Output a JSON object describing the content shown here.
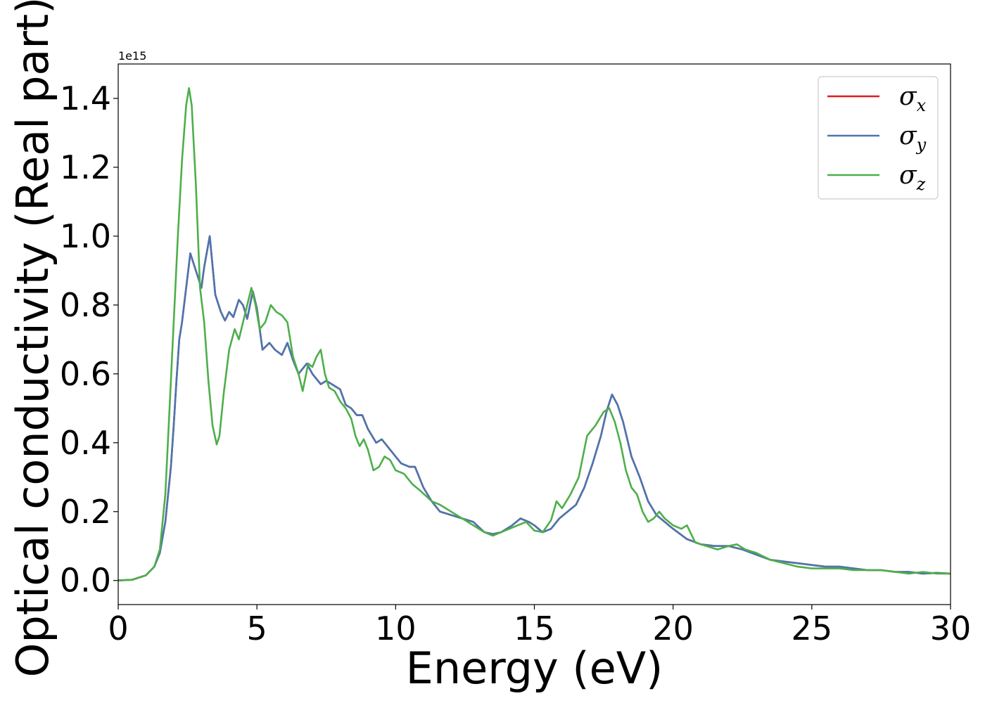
{
  "chart_data": {
    "type": "line",
    "xlabel": "Energy (eV)",
    "ylabel": "Optical conductivity (Real part)",
    "y_offset_label": "1e15",
    "y_scale": 1000000000000000.0,
    "xlim": [
      0,
      30
    ],
    "ylim": [
      -0.07,
      1.5
    ],
    "x_ticks": [
      0,
      5,
      10,
      15,
      20,
      25,
      30
    ],
    "x_tick_labels": [
      "0",
      "5",
      "10",
      "15",
      "20",
      "25",
      "30"
    ],
    "y_ticks": [
      0.0,
      0.2,
      0.4,
      0.6,
      0.8,
      1.0,
      1.2,
      1.4
    ],
    "y_tick_labels": [
      "0.0",
      "0.2",
      "0.4",
      "0.6",
      "0.8",
      "1.0",
      "1.2",
      "1.4"
    ],
    "grid": false,
    "legend": {
      "placement": "top-right",
      "entries": [
        "σx",
        "σy",
        "σz"
      ]
    },
    "series": [
      {
        "name": "σx",
        "symbol": "σ",
        "subscript": "x",
        "color": "#e41a1c",
        "x": [
          0,
          0.5,
          1.0,
          1.3,
          1.5,
          1.7,
          1.9,
          2.0,
          2.1,
          2.2,
          2.3,
          2.45,
          2.6,
          2.8,
          3.0,
          3.1,
          3.3,
          3.5,
          3.7,
          3.85,
          4.0,
          4.15,
          4.35,
          4.5,
          4.65,
          4.85,
          5.0,
          5.2,
          5.45,
          5.65,
          5.9,
          6.1,
          6.3,
          6.5,
          6.8,
          7.0,
          7.3,
          7.5,
          7.8,
          8.0,
          8.2,
          8.4,
          8.6,
          8.8,
          9.0,
          9.3,
          9.5,
          9.7,
          10.0,
          10.2,
          10.5,
          10.7,
          11.0,
          11.3,
          11.6,
          12.0,
          12.4,
          12.8,
          13.2,
          13.5,
          13.8,
          14.0,
          14.2,
          14.5,
          14.8,
          15.0,
          15.3,
          15.6,
          15.9,
          16.2,
          16.5,
          16.8,
          17.1,
          17.4,
          17.6,
          17.8,
          18.0,
          18.2,
          18.5,
          18.8,
          19.1,
          19.4,
          19.7,
          20.0,
          20.5,
          21.0,
          21.5,
          22.0,
          22.5,
          23.0,
          23.5,
          24.0,
          24.5,
          25.0,
          25.5,
          26.0,
          26.5,
          27.0,
          27.5,
          28.0,
          28.5,
          29.0,
          29.5,
          30.0
        ],
        "y": [
          0.0,
          0.002,
          0.015,
          0.04,
          0.08,
          0.17,
          0.33,
          0.45,
          0.58,
          0.7,
          0.75,
          0.85,
          0.95,
          0.9,
          0.85,
          0.91,
          1.0,
          0.83,
          0.78,
          0.755,
          0.78,
          0.765,
          0.815,
          0.8,
          0.76,
          0.84,
          0.79,
          0.67,
          0.69,
          0.67,
          0.655,
          0.69,
          0.64,
          0.6,
          0.63,
          0.6,
          0.57,
          0.58,
          0.565,
          0.555,
          0.51,
          0.5,
          0.48,
          0.48,
          0.44,
          0.4,
          0.41,
          0.39,
          0.36,
          0.34,
          0.33,
          0.33,
          0.27,
          0.23,
          0.2,
          0.19,
          0.18,
          0.17,
          0.14,
          0.135,
          0.14,
          0.15,
          0.16,
          0.18,
          0.17,
          0.16,
          0.14,
          0.15,
          0.18,
          0.2,
          0.22,
          0.27,
          0.34,
          0.42,
          0.49,
          0.54,
          0.51,
          0.46,
          0.36,
          0.3,
          0.23,
          0.19,
          0.17,
          0.15,
          0.12,
          0.105,
          0.1,
          0.1,
          0.09,
          0.075,
          0.06,
          0.055,
          0.05,
          0.045,
          0.04,
          0.04,
          0.035,
          0.03,
          0.03,
          0.025,
          0.025,
          0.02,
          0.022,
          0.02
        ]
      },
      {
        "name": "σy",
        "symbol": "σ",
        "subscript": "y",
        "color": "#4a76b0",
        "x": [
          0,
          0.5,
          1.0,
          1.3,
          1.5,
          1.7,
          1.9,
          2.0,
          2.1,
          2.2,
          2.3,
          2.45,
          2.6,
          2.8,
          3.0,
          3.1,
          3.3,
          3.5,
          3.7,
          3.85,
          4.0,
          4.15,
          4.35,
          4.5,
          4.65,
          4.85,
          5.0,
          5.2,
          5.45,
          5.65,
          5.9,
          6.1,
          6.3,
          6.5,
          6.8,
          7.0,
          7.3,
          7.5,
          7.8,
          8.0,
          8.2,
          8.4,
          8.6,
          8.8,
          9.0,
          9.3,
          9.5,
          9.7,
          10.0,
          10.2,
          10.5,
          10.7,
          11.0,
          11.3,
          11.6,
          12.0,
          12.4,
          12.8,
          13.2,
          13.5,
          13.8,
          14.0,
          14.2,
          14.5,
          14.8,
          15.0,
          15.3,
          15.6,
          15.9,
          16.2,
          16.5,
          16.8,
          17.1,
          17.4,
          17.6,
          17.8,
          18.0,
          18.2,
          18.5,
          18.8,
          19.1,
          19.4,
          19.7,
          20.0,
          20.5,
          21.0,
          21.5,
          22.0,
          22.5,
          23.0,
          23.5,
          24.0,
          24.5,
          25.0,
          25.5,
          26.0,
          26.5,
          27.0,
          27.5,
          28.0,
          28.5,
          29.0,
          29.5,
          30.0
        ],
        "y": [
          0.0,
          0.002,
          0.015,
          0.04,
          0.08,
          0.17,
          0.33,
          0.45,
          0.58,
          0.7,
          0.75,
          0.85,
          0.95,
          0.9,
          0.85,
          0.91,
          1.0,
          0.83,
          0.78,
          0.755,
          0.78,
          0.765,
          0.815,
          0.8,
          0.76,
          0.84,
          0.79,
          0.67,
          0.69,
          0.67,
          0.655,
          0.69,
          0.64,
          0.6,
          0.63,
          0.6,
          0.57,
          0.58,
          0.565,
          0.555,
          0.51,
          0.5,
          0.48,
          0.48,
          0.44,
          0.4,
          0.41,
          0.39,
          0.36,
          0.34,
          0.33,
          0.33,
          0.27,
          0.23,
          0.2,
          0.19,
          0.18,
          0.17,
          0.14,
          0.135,
          0.14,
          0.15,
          0.16,
          0.18,
          0.17,
          0.16,
          0.14,
          0.15,
          0.18,
          0.2,
          0.22,
          0.27,
          0.34,
          0.42,
          0.49,
          0.54,
          0.51,
          0.46,
          0.36,
          0.3,
          0.23,
          0.19,
          0.17,
          0.15,
          0.12,
          0.105,
          0.1,
          0.1,
          0.09,
          0.075,
          0.06,
          0.055,
          0.05,
          0.045,
          0.04,
          0.04,
          0.035,
          0.03,
          0.03,
          0.025,
          0.025,
          0.02,
          0.022,
          0.02
        ]
      },
      {
        "name": "σz",
        "symbol": "σ",
        "subscript": "z",
        "color": "#4daf4a",
        "x": [
          0,
          0.5,
          1.0,
          1.3,
          1.5,
          1.7,
          1.85,
          2.0,
          2.15,
          2.3,
          2.45,
          2.55,
          2.65,
          2.8,
          2.95,
          3.1,
          3.25,
          3.4,
          3.55,
          3.65,
          3.8,
          4.0,
          4.2,
          4.35,
          4.5,
          4.65,
          4.8,
          4.95,
          5.1,
          5.3,
          5.5,
          5.7,
          5.9,
          6.1,
          6.3,
          6.5,
          6.65,
          6.85,
          7.0,
          7.15,
          7.3,
          7.45,
          7.6,
          7.8,
          8.0,
          8.2,
          8.4,
          8.55,
          8.7,
          8.85,
          9.0,
          9.2,
          9.4,
          9.6,
          9.8,
          10.0,
          10.3,
          10.6,
          10.9,
          11.3,
          11.6,
          12.0,
          12.4,
          12.8,
          13.2,
          13.5,
          13.8,
          14.1,
          14.4,
          14.7,
          15.0,
          15.3,
          15.6,
          15.8,
          16.0,
          16.3,
          16.6,
          16.9,
          17.2,
          17.5,
          17.7,
          17.9,
          18.1,
          18.3,
          18.5,
          18.7,
          18.9,
          19.1,
          19.3,
          19.5,
          19.7,
          20.0,
          20.3,
          20.5,
          20.8,
          21.2,
          21.6,
          22.0,
          22.3,
          22.6,
          23.0,
          23.5,
          24.0,
          24.5,
          25.0,
          25.5,
          26.0,
          26.5,
          27.0,
          27.5,
          28.0,
          28.5,
          29.0,
          29.5,
          30.0
        ],
        "y": [
          0.0,
          0.002,
          0.015,
          0.04,
          0.09,
          0.25,
          0.5,
          0.75,
          1.0,
          1.22,
          1.38,
          1.43,
          1.38,
          1.15,
          0.85,
          0.75,
          0.58,
          0.45,
          0.395,
          0.42,
          0.54,
          0.67,
          0.73,
          0.7,
          0.75,
          0.8,
          0.85,
          0.8,
          0.73,
          0.75,
          0.8,
          0.78,
          0.77,
          0.75,
          0.65,
          0.6,
          0.55,
          0.63,
          0.62,
          0.65,
          0.67,
          0.6,
          0.56,
          0.55,
          0.52,
          0.5,
          0.47,
          0.42,
          0.39,
          0.41,
          0.38,
          0.32,
          0.33,
          0.36,
          0.35,
          0.32,
          0.31,
          0.28,
          0.26,
          0.23,
          0.22,
          0.2,
          0.18,
          0.16,
          0.14,
          0.13,
          0.14,
          0.15,
          0.16,
          0.17,
          0.145,
          0.14,
          0.175,
          0.23,
          0.21,
          0.25,
          0.3,
          0.42,
          0.45,
          0.49,
          0.5,
          0.46,
          0.4,
          0.32,
          0.27,
          0.25,
          0.2,
          0.17,
          0.18,
          0.2,
          0.18,
          0.16,
          0.15,
          0.16,
          0.11,
          0.1,
          0.09,
          0.1,
          0.105,
          0.09,
          0.08,
          0.06,
          0.05,
          0.04,
          0.035,
          0.035,
          0.035,
          0.03,
          0.03,
          0.03,
          0.025,
          0.02,
          0.025,
          0.02,
          0.02
        ]
      }
    ]
  }
}
